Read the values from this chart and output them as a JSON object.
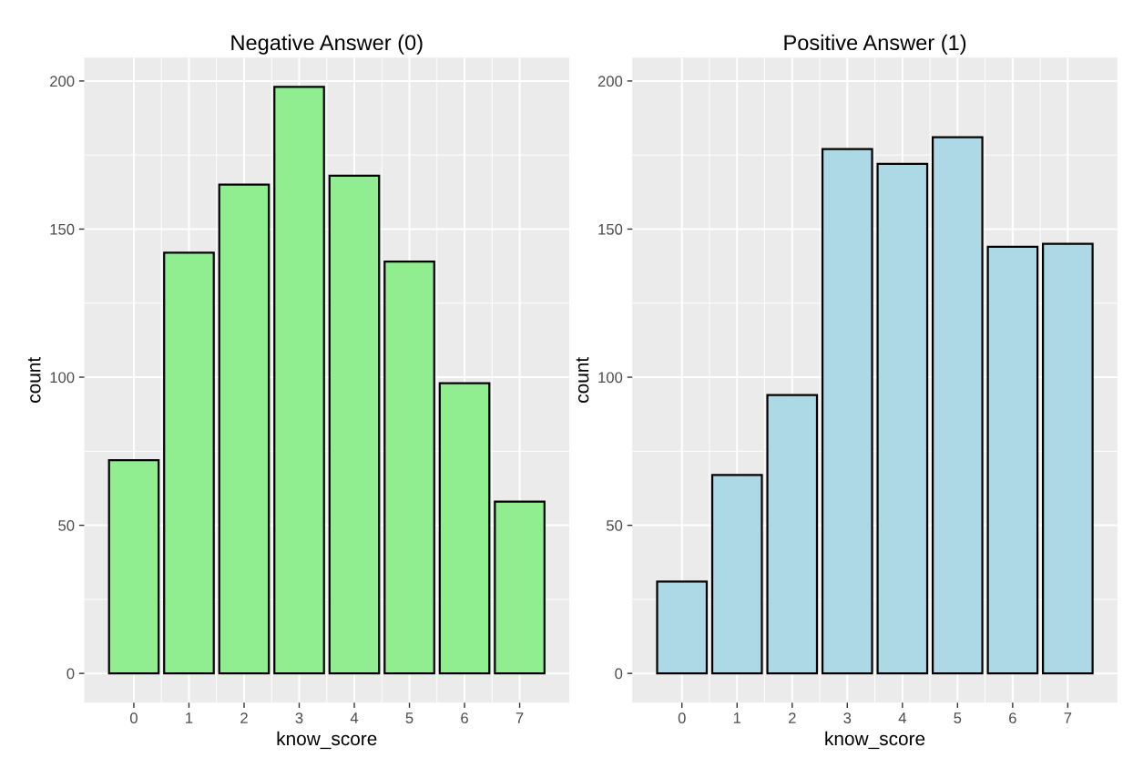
{
  "chart_data": [
    {
      "type": "bar",
      "title": "Negative Answer (0)",
      "xlabel": "know_score",
      "ylabel": "count",
      "x": [
        0,
        1,
        2,
        3,
        4,
        5,
        6,
        7
      ],
      "series": [
        {
          "color": "#90ee90",
          "values": [
            72,
            142,
            165,
            198,
            168,
            139,
            98,
            58
          ]
        }
      ],
      "xlim": [
        -0.9,
        7.9
      ],
      "xticks": [
        0,
        1,
        2,
        3,
        4,
        5,
        6,
        7
      ],
      "ylim": [
        -9.9,
        207.9
      ],
      "yticks": [
        0,
        50,
        100,
        150,
        200
      ],
      "grid": true,
      "legend": false
    },
    {
      "type": "bar",
      "title": "Positive Answer (1)",
      "xlabel": "know_score",
      "ylabel": "count",
      "x": [
        0,
        1,
        2,
        3,
        4,
        5,
        6,
        7
      ],
      "series": [
        {
          "color": "#add8e6",
          "values": [
            31,
            67,
            94,
            177,
            172,
            181,
            144,
            145
          ]
        }
      ],
      "xlim": [
        -0.9,
        7.9
      ],
      "xticks": [
        0,
        1,
        2,
        3,
        4,
        5,
        6,
        7
      ],
      "ylim": [
        -9.9,
        207.9
      ],
      "yticks": [
        0,
        50,
        100,
        150,
        200
      ],
      "grid": true,
      "legend": false
    }
  ]
}
